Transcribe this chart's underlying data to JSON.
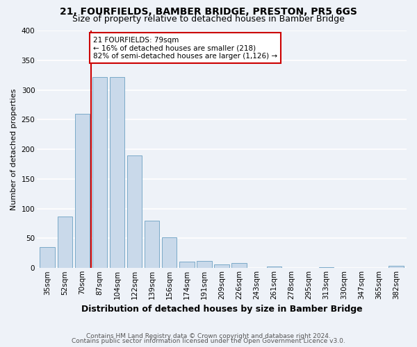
{
  "title1": "21, FOURFIELDS, BAMBER BRIDGE, PRESTON, PR5 6GS",
  "title2": "Size of property relative to detached houses in Bamber Bridge",
  "xlabel": "Distribution of detached houses by size in Bamber Bridge",
  "ylabel": "Number of detached properties",
  "bar_color": "#c9d9ea",
  "bar_edge_color": "#7aaac8",
  "categories": [
    "35sqm",
    "52sqm",
    "70sqm",
    "87sqm",
    "104sqm",
    "122sqm",
    "139sqm",
    "156sqm",
    "174sqm",
    "191sqm",
    "209sqm",
    "226sqm",
    "243sqm",
    "261sqm",
    "278sqm",
    "295sqm",
    "313sqm",
    "330sqm",
    "347sqm",
    "365sqm",
    "382sqm"
  ],
  "values": [
    35,
    87,
    260,
    322,
    322,
    190,
    80,
    52,
    11,
    12,
    6,
    8,
    0,
    3,
    0,
    0,
    1,
    0,
    0,
    0,
    4
  ],
  "ylim": [
    0,
    400
  ],
  "yticks": [
    0,
    50,
    100,
    150,
    200,
    250,
    300,
    350,
    400
  ],
  "vline_x": 2.5,
  "annotation_text": "21 FOURFIELDS: 79sqm\n← 16% of detached houses are smaller (218)\n82% of semi-detached houses are larger (1,126) →",
  "annotation_box_color": "#ffffff",
  "annotation_box_edge_color": "#cc0000",
  "vline_color": "#cc0000",
  "footer1": "Contains HM Land Registry data © Crown copyright and database right 2024.",
  "footer2": "Contains public sector information licensed under the Open Government Licence v3.0.",
  "bg_color": "#eef2f8",
  "grid_color": "#ffffff",
  "title1_fontsize": 10,
  "title2_fontsize": 9,
  "xlabel_fontsize": 9,
  "ylabel_fontsize": 8,
  "tick_fontsize": 7.5,
  "footer_fontsize": 6.5,
  "annotation_fontsize": 7.5
}
